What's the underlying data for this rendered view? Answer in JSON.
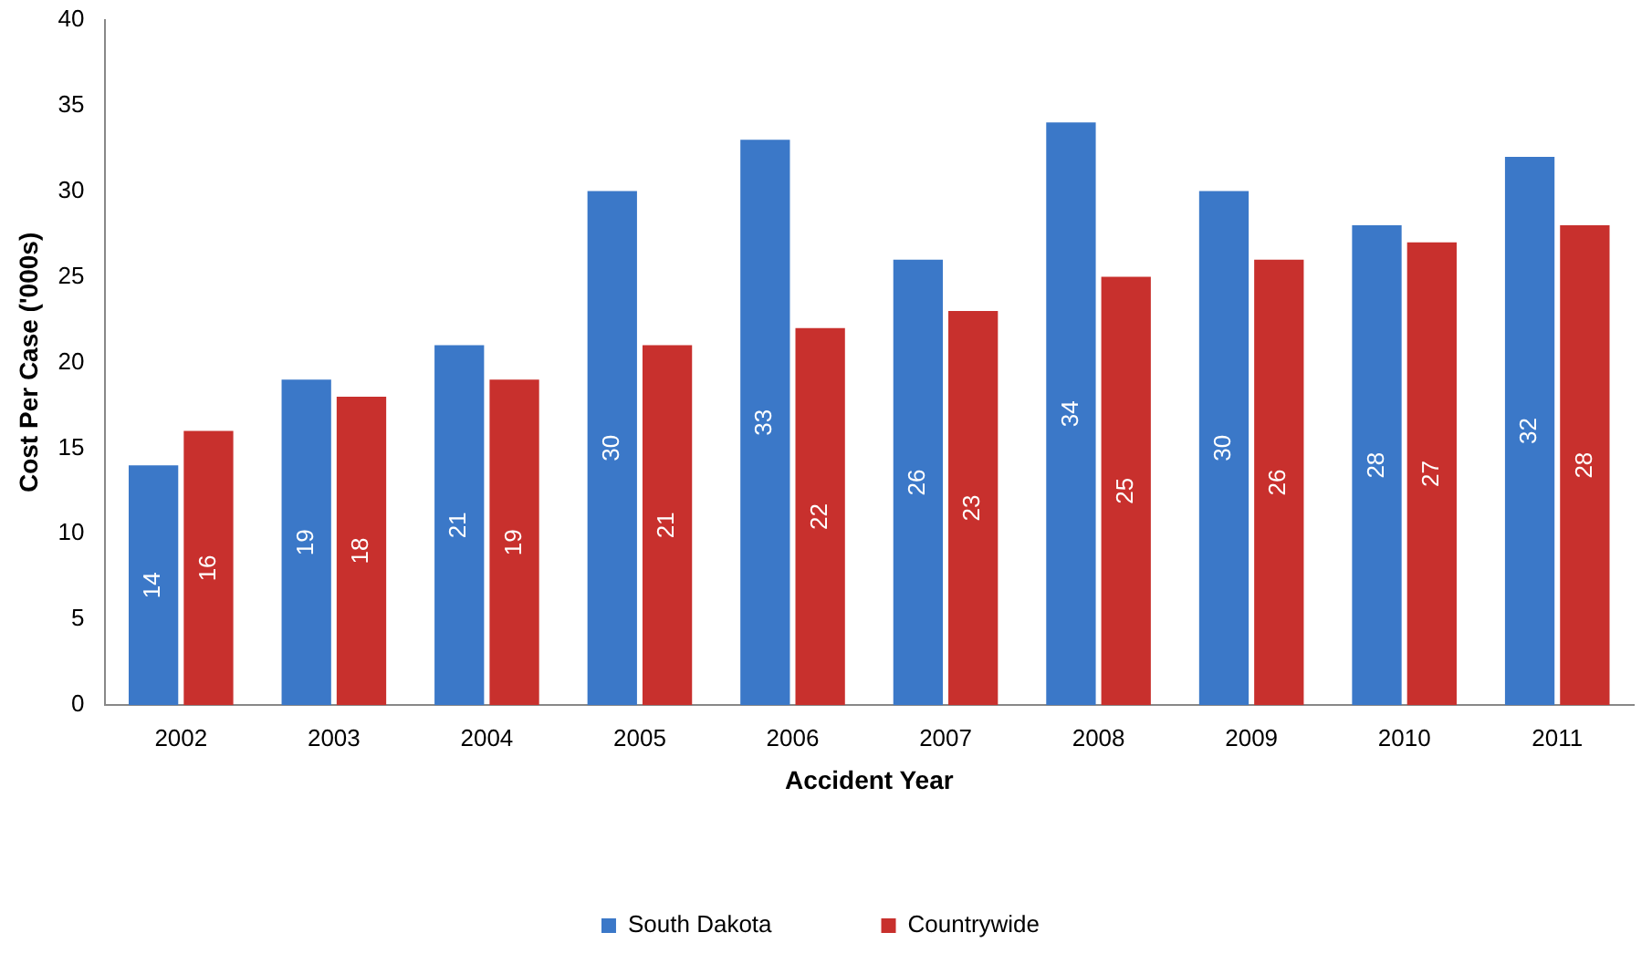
{
  "chart_data": {
    "type": "bar",
    "xlabel": "Accident Year",
    "ylabel": "Cost Per Case ('000s)",
    "categories": [
      "2002",
      "2003",
      "2004",
      "2005",
      "2006",
      "2007",
      "2008",
      "2009",
      "2010",
      "2011"
    ],
    "series": [
      {
        "name": "South Dakota",
        "color": "#3b78c8",
        "values": [
          14,
          19,
          21,
          30,
          33,
          26,
          34,
          30,
          28,
          32
        ]
      },
      {
        "name": "Countrywide",
        "color": "#c8302d",
        "values": [
          16,
          18,
          19,
          21,
          22,
          23,
          25,
          26,
          27,
          28
        ]
      }
    ],
    "ylim": [
      0,
      40
    ],
    "yticks": [
      0,
      5,
      10,
      15,
      20,
      25,
      30,
      35,
      40
    ],
    "grid": false,
    "legend": "bottom",
    "data_labels": true
  }
}
